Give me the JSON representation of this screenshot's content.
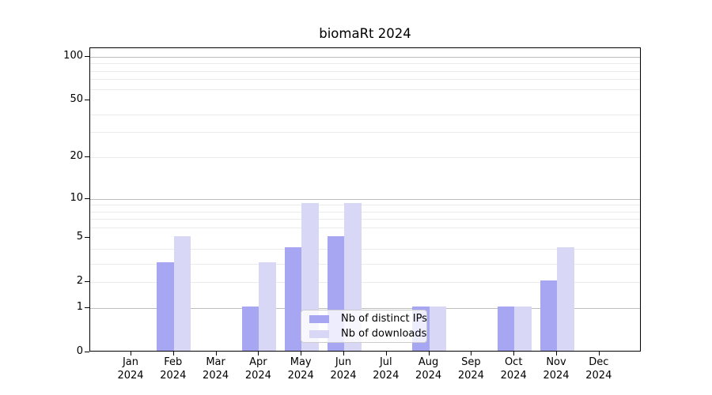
{
  "window": {
    "background": "#ffffff"
  },
  "chart_data": {
    "type": "bar",
    "title": "biomaRt 2024",
    "categories": [
      "Jan",
      "Feb",
      "Mar",
      "Apr",
      "May",
      "Jun",
      "Jul",
      "Aug",
      "Sep",
      "Oct",
      "Nov",
      "Dec"
    ],
    "x_year_label": "2024",
    "series": [
      {
        "name": "Nb of distinct IPs",
        "color": "#a6a6f2",
        "values": [
          0,
          3,
          0,
          1,
          4,
          5,
          0,
          1,
          0,
          1,
          2,
          0
        ]
      },
      {
        "name": "Nb of downloads",
        "color": "#d8d8f6",
        "values": [
          0,
          5,
          0,
          3,
          9,
          9,
          0,
          1,
          0,
          1,
          4,
          0
        ]
      }
    ],
    "y_axis": {
      "scale": "log1p",
      "tick_values": [
        0,
        1,
        2,
        5,
        10,
        20,
        50,
        100
      ],
      "tick_labels": [
        "0",
        "1",
        "2",
        "5",
        "10",
        "20",
        "50",
        "100"
      ],
      "major_gridlines": [
        1,
        10,
        100
      ],
      "minor_gridlines": [
        2,
        3,
        4,
        6,
        7,
        8,
        9,
        20,
        30,
        40,
        60,
        70,
        80,
        90
      ],
      "ylim": [
        0,
        115
      ]
    },
    "legend": {
      "position": "bottom-center",
      "entries": [
        "Nb of distinct IPs",
        "Nb of downloads"
      ]
    },
    "grid": true,
    "colors": {
      "major_gridline": "#bdbdbd",
      "minor_gridline": "#ebebeb",
      "axis": "#000000",
      "legend_border": "#cccccc",
      "legend_background": "rgba(255,255,255,0.8)"
    }
  }
}
